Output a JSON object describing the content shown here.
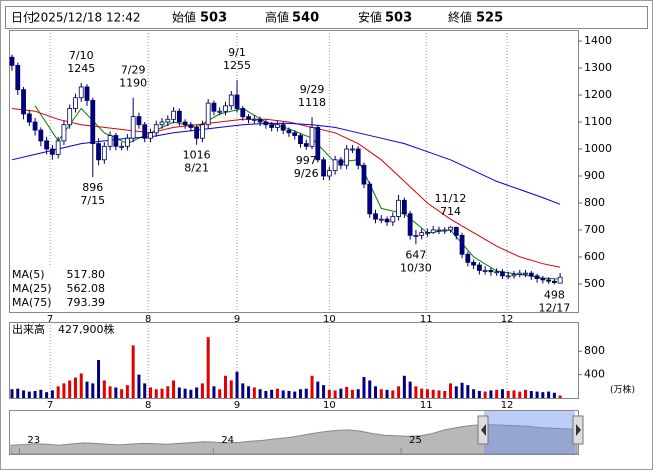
{
  "header": {
    "date_label": "日付",
    "date": "2025/12/18 12:42",
    "items": [
      {
        "label": "始値",
        "value": 503
      },
      {
        "label": "高値",
        "value": 540,
        "color": "#e00000"
      },
      {
        "label": "安値",
        "value": 503,
        "color": "#008000"
      },
      {
        "label": "終値",
        "value": 525
      }
    ]
  },
  "chart_data": [
    {
      "type": "candlestick",
      "open": [
        1340,
        1310,
        1220,
        1130,
        1100,
        1070,
        1030,
        1000,
        980,
        1030,
        1090,
        1150,
        1190,
        1230,
        1180,
        1020,
        960,
        1010,
        1050,
        1010,
        1010,
        1040,
        1120,
        1090,
        1040,
        1060,
        1090,
        1100,
        1110,
        1140,
        1100,
        1090,
        1080,
        1040,
        1090,
        1170,
        1140,
        1140,
        1160,
        1200,
        1150,
        1120,
        1110,
        1110,
        1100,
        1090,
        1080,
        1090,
        1070,
        1060,
        1050,
        1020,
        1010,
        1080,
        960,
        900,
        920,
        960,
        940,
        1000,
        1000,
        940,
        870,
        760,
        740,
        740,
        730,
        750,
        810,
        760,
        680,
        680,
        690,
        690,
        700,
        700,
        700,
        710,
        680,
        610,
        580,
        570,
        550,
        550,
        545,
        545,
        530,
        530,
        535,
        540,
        540,
        530,
        520,
        515,
        510,
        503
      ],
      "high": [
        1350,
        1320,
        1230,
        1145,
        1115,
        1080,
        1045,
        1015,
        1045,
        1105,
        1165,
        1205,
        1245,
        1240,
        1190,
        1040,
        1025,
        1065,
        1060,
        1025,
        1055,
        1190,
        1135,
        1100,
        1075,
        1105,
        1115,
        1125,
        1155,
        1150,
        1110,
        1100,
        1090,
        1105,
        1185,
        1180,
        1155,
        1175,
        1215,
        1255,
        1160,
        1130,
        1125,
        1120,
        1110,
        1100,
        1105,
        1100,
        1080,
        1070,
        1060,
        1035,
        1118,
        1090,
        970,
        935,
        975,
        970,
        1015,
        1015,
        1010,
        950,
        880,
        775,
        755,
        750,
        765,
        830,
        820,
        770,
        700,
        705,
        705,
        715,
        712,
        710,
        714,
        712,
        690,
        620,
        590,
        580,
        565,
        560,
        558,
        555,
        545,
        548,
        552,
        552,
        548,
        538,
        530,
        525,
        518,
        540
      ],
      "low": [
        1290,
        1200,
        1110,
        1085,
        1050,
        1010,
        980,
        960,
        965,
        1015,
        1075,
        1135,
        1175,
        1160,
        896,
        940,
        945,
        995,
        995,
        995,
        995,
        1025,
        1075,
        1025,
        1025,
        1045,
        1075,
        1085,
        1095,
        1085,
        1075,
        1065,
        1016,
        1025,
        1075,
        1125,
        1125,
        1125,
        1145,
        1135,
        1105,
        1095,
        1095,
        1085,
        1075,
        1065,
        1065,
        1055,
        1045,
        1035,
        1005,
        997,
        1000,
        950,
        885,
        885,
        905,
        925,
        925,
        985,
        925,
        855,
        745,
        725,
        725,
        715,
        715,
        735,
        745,
        665,
        647,
        665,
        675,
        685,
        685,
        685,
        690,
        665,
        595,
        565,
        555,
        535,
        535,
        530,
        530,
        518,
        518,
        520,
        525,
        525,
        515,
        505,
        502,
        500,
        498,
        503
      ],
      "close": [
        1310,
        1220,
        1130,
        1100,
        1070,
        1030,
        1000,
        980,
        1030,
        1090,
        1150,
        1190,
        1230,
        1180,
        1020,
        960,
        1010,
        1050,
        1010,
        1010,
        1040,
        1120,
        1090,
        1040,
        1060,
        1090,
        1100,
        1110,
        1140,
        1100,
        1090,
        1080,
        1040,
        1090,
        1170,
        1140,
        1140,
        1160,
        1200,
        1150,
        1120,
        1110,
        1110,
        1100,
        1090,
        1080,
        1090,
        1070,
        1060,
        1050,
        1020,
        1010,
        1080,
        960,
        900,
        920,
        960,
        940,
        1000,
        1000,
        940,
        870,
        760,
        740,
        740,
        730,
        750,
        810,
        760,
        680,
        680,
        690,
        690,
        700,
        700,
        700,
        710,
        680,
        610,
        580,
        570,
        550,
        550,
        545,
        545,
        530,
        530,
        535,
        540,
        540,
        530,
        520,
        515,
        510,
        505,
        525
      ],
      "peak_dates": [
        null,
        null,
        null,
        null,
        null,
        null,
        null,
        null,
        null,
        null,
        null,
        null,
        "7/10",
        null,
        null,
        null,
        null,
        null,
        null,
        null,
        null,
        "7/29",
        null,
        null,
        null,
        null,
        null,
        null,
        null,
        null,
        null,
        null,
        null,
        null,
        null,
        null,
        null,
        null,
        null,
        "9/1",
        null,
        null,
        null,
        null,
        null,
        null,
        null,
        null,
        null,
        null,
        null,
        null,
        "9/29",
        null,
        null,
        null,
        null,
        null,
        null,
        null,
        null,
        null,
        null,
        null,
        null,
        null,
        null,
        null,
        null,
        null,
        null,
        null,
        null,
        null,
        null,
        null,
        "11/12",
        null,
        null,
        null,
        null,
        null,
        null,
        null,
        null,
        null,
        null,
        null,
        null,
        null,
        null,
        null,
        null,
        null,
        null,
        null
      ],
      "trough_dates": [
        null,
        null,
        null,
        null,
        null,
        null,
        null,
        null,
        null,
        null,
        null,
        null,
        null,
        null,
        "7/15",
        null,
        null,
        null,
        null,
        null,
        null,
        null,
        null,
        null,
        null,
        null,
        null,
        null,
        null,
        null,
        null,
        null,
        "8/21",
        null,
        null,
        null,
        null,
        null,
        null,
        null,
        null,
        null,
        null,
        null,
        null,
        null,
        null,
        null,
        null,
        null,
        null,
        "9/26",
        null,
        null,
        null,
        null,
        null,
        null,
        null,
        null,
        null,
        null,
        null,
        null,
        null,
        null,
        null,
        null,
        null,
        null,
        "10/30",
        null,
        null,
        null,
        null,
        null,
        null,
        null,
        null,
        null,
        null,
        null,
        null,
        null,
        null,
        null,
        null,
        null,
        null,
        null,
        null,
        null,
        null,
        null,
        "12/17",
        null
      ],
      "up_color": "#ffffff",
      "down_color": "#000080",
      "ylim": [
        396,
        1441
      ],
      "yticks": [
        500,
        600,
        700,
        800,
        900,
        1000,
        1100,
        1200,
        1300,
        1400
      ],
      "xticks": [
        {
          "value": 6.6,
          "label": "7"
        },
        {
          "value": 23.6,
          "label": "8"
        },
        {
          "value": 39,
          "label": "9"
        },
        {
          "value": 55,
          "label": "10"
        },
        {
          "value": 71.8,
          "label": "11"
        },
        {
          "value": 85.8,
          "label": "12"
        }
      ],
      "moving_averages": [
        {
          "name": "MA(5)",
          "color": "#008000",
          "x": [
            4,
            8,
            12,
            16,
            20,
            24,
            28,
            32,
            36,
            40,
            44,
            48,
            52,
            56,
            60,
            64,
            68,
            72,
            76,
            80,
            84,
            88,
            92,
            95
          ],
          "values": [
            1160,
            1030,
            1150,
            1060,
            1020,
            1060,
            1100,
            1080,
            1130,
            1150,
            1100,
            1075,
            1040,
            950,
            960,
            780,
            760,
            690,
            700,
            600,
            548,
            535,
            522,
            518
          ],
          "current": {
            "value": 517.8,
            "label": "517.80"
          }
        },
        {
          "name": "MA(25)",
          "color": "#e00000",
          "x": [
            0,
            4,
            8,
            12,
            16,
            20,
            24,
            28,
            32,
            36,
            40,
            44,
            48,
            52,
            56,
            60,
            64,
            68,
            72,
            76,
            80,
            84,
            88,
            92,
            95
          ],
          "values": [
            1150,
            1140,
            1110,
            1090,
            1080,
            1070,
            1060,
            1080,
            1090,
            1100,
            1110,
            1110,
            1100,
            1080,
            1060,
            1020,
            960,
            880,
            800,
            740,
            690,
            640,
            600,
            575,
            562
          ],
          "current": {
            "value": 562.08,
            "label": "562.08"
          }
        },
        {
          "name": "MA(75)",
          "color": "#0000e0",
          "x": [
            0,
            4,
            8,
            12,
            16,
            20,
            24,
            28,
            32,
            36,
            40,
            44,
            48,
            52,
            56,
            60,
            64,
            68,
            72,
            76,
            80,
            84,
            88,
            92,
            95
          ],
          "values": [
            960,
            980,
            1000,
            1020,
            1030,
            1040,
            1045,
            1060,
            1070,
            1080,
            1090,
            1095,
            1095,
            1090,
            1080,
            1060,
            1040,
            1020,
            990,
            960,
            920,
            880,
            850,
            820,
            795
          ],
          "current": {
            "value": 793.39,
            "label": "793.39"
          }
        }
      ]
    },
    {
      "type": "bar",
      "title": "出来高",
      "current": {
        "value": 427900,
        "label": "427,900株"
      },
      "unit": "(万株)",
      "values": [
        150,
        160,
        130,
        110,
        120,
        140,
        100,
        130,
        200,
        250,
        300,
        350,
        420,
        280,
        250,
        650,
        300,
        200,
        180,
        150,
        220,
        900,
        400,
        250,
        180,
        150,
        160,
        200,
        300,
        180,
        160,
        140,
        180,
        250,
        1040,
        200,
        150,
        380,
        300,
        450,
        250,
        200,
        180,
        150,
        120,
        140,
        160,
        130,
        120,
        110,
        150,
        160,
        380,
        280,
        220,
        140,
        130,
        160,
        190,
        140,
        150,
        360,
        300,
        200,
        150,
        140,
        130,
        200,
        380,
        280,
        200,
        160,
        150,
        140,
        130,
        120,
        250,
        200,
        260,
        220,
        150,
        120,
        110,
        130,
        140,
        150,
        120,
        130,
        110,
        140,
        120,
        110,
        100,
        110,
        90,
        42.79
      ],
      "up_color": "#e00000",
      "down_color": "#000080",
      "ylim": [
        0,
        1300
      ],
      "yticks": [
        400,
        800
      ],
      "xticks": [
        {
          "value": 6.6,
          "label": "7"
        },
        {
          "value": 23.6,
          "label": "8"
        },
        {
          "value": 39,
          "label": "9"
        },
        {
          "value": 55,
          "label": "10"
        },
        {
          "value": 71.8,
          "label": "11"
        },
        {
          "value": 85.8,
          "label": "12"
        }
      ]
    },
    {
      "type": "area",
      "color": "#b8b8b8",
      "values": [
        300,
        320,
        350,
        330,
        300,
        340,
        380,
        360,
        330,
        310,
        340,
        360,
        350,
        330,
        360,
        390,
        420,
        400,
        380,
        400,
        440,
        470,
        520,
        560,
        620,
        700,
        760,
        800,
        820,
        780,
        700,
        640,
        620,
        600,
        620,
        700,
        820,
        900,
        960,
        1000,
        1000,
        980,
        960,
        940,
        900,
        880,
        860,
        840
      ],
      "ylim": [
        0,
        1500
      ],
      "xticks": [
        {
          "value": 0.7,
          "label": "23"
        },
        {
          "value": 16.8,
          "label": "24"
        },
        {
          "value": 32.4,
          "label": "25"
        }
      ]
    }
  ]
}
